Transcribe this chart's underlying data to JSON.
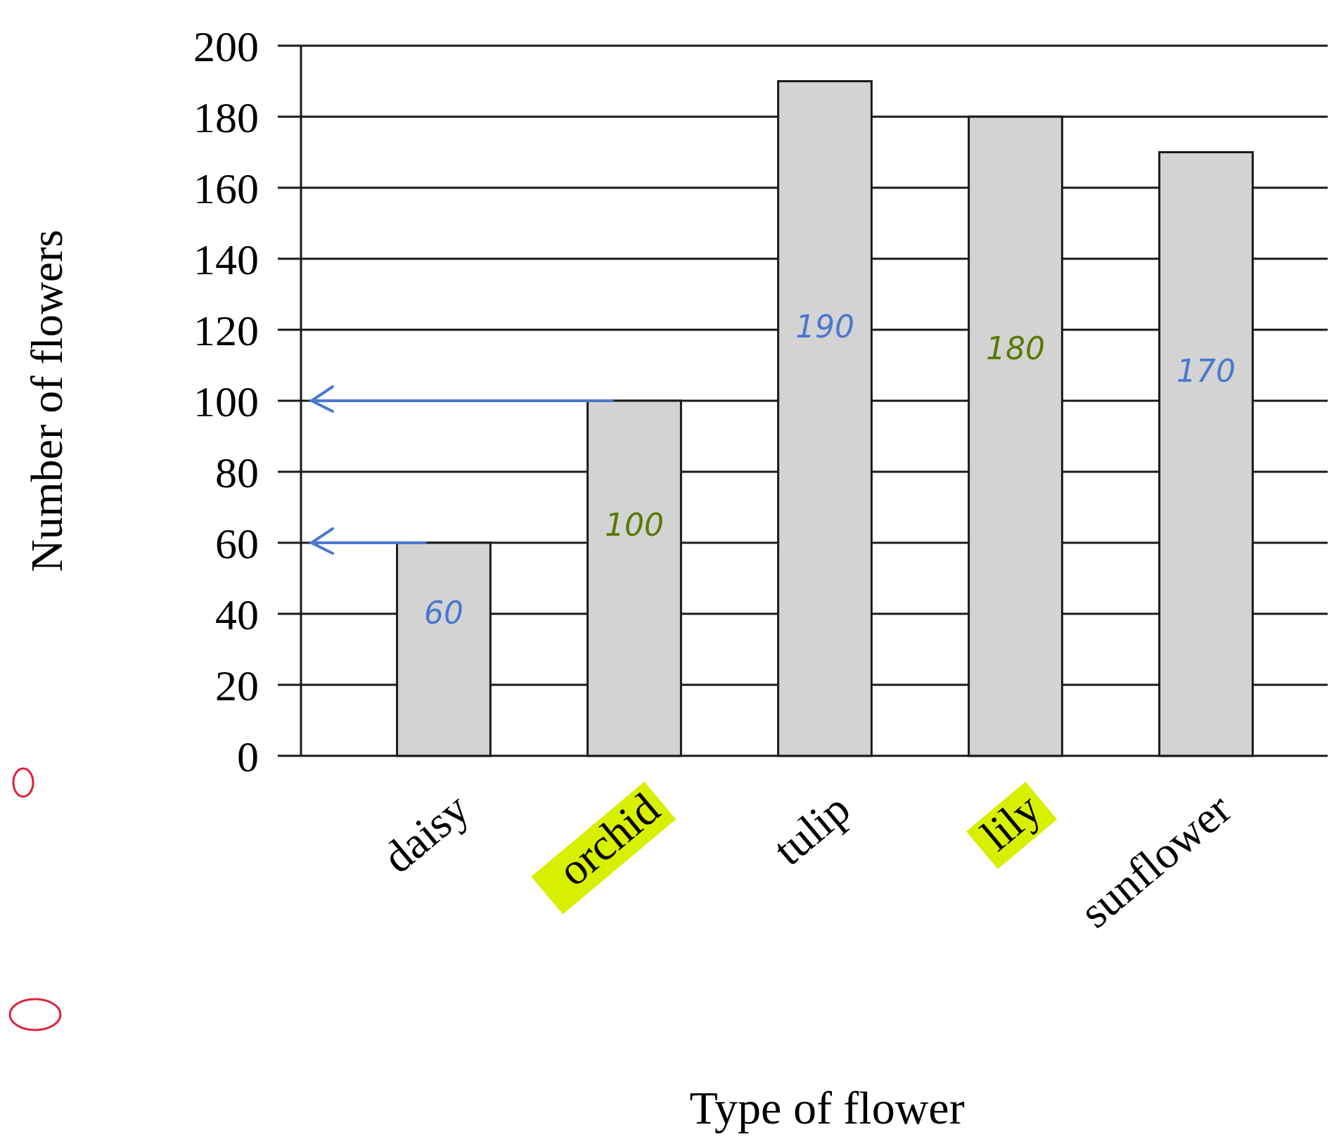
{
  "chart_data": {
    "type": "bar",
    "xlabel": "Type of flower",
    "ylabel": "Number of flowers",
    "categories": [
      "daisy",
      "orchid",
      "tulip",
      "lily",
      "sunflower"
    ],
    "values": [
      60,
      100,
      190,
      180,
      170
    ],
    "value_labels": [
      "60",
      "100",
      "190",
      "180",
      "170"
    ],
    "color": "#d3d3d3",
    "ylim": [
      0,
      200
    ],
    "yticks": [
      0,
      20,
      40,
      60,
      80,
      100,
      120,
      140,
      160,
      180,
      200
    ],
    "grid": "y"
  }
}
